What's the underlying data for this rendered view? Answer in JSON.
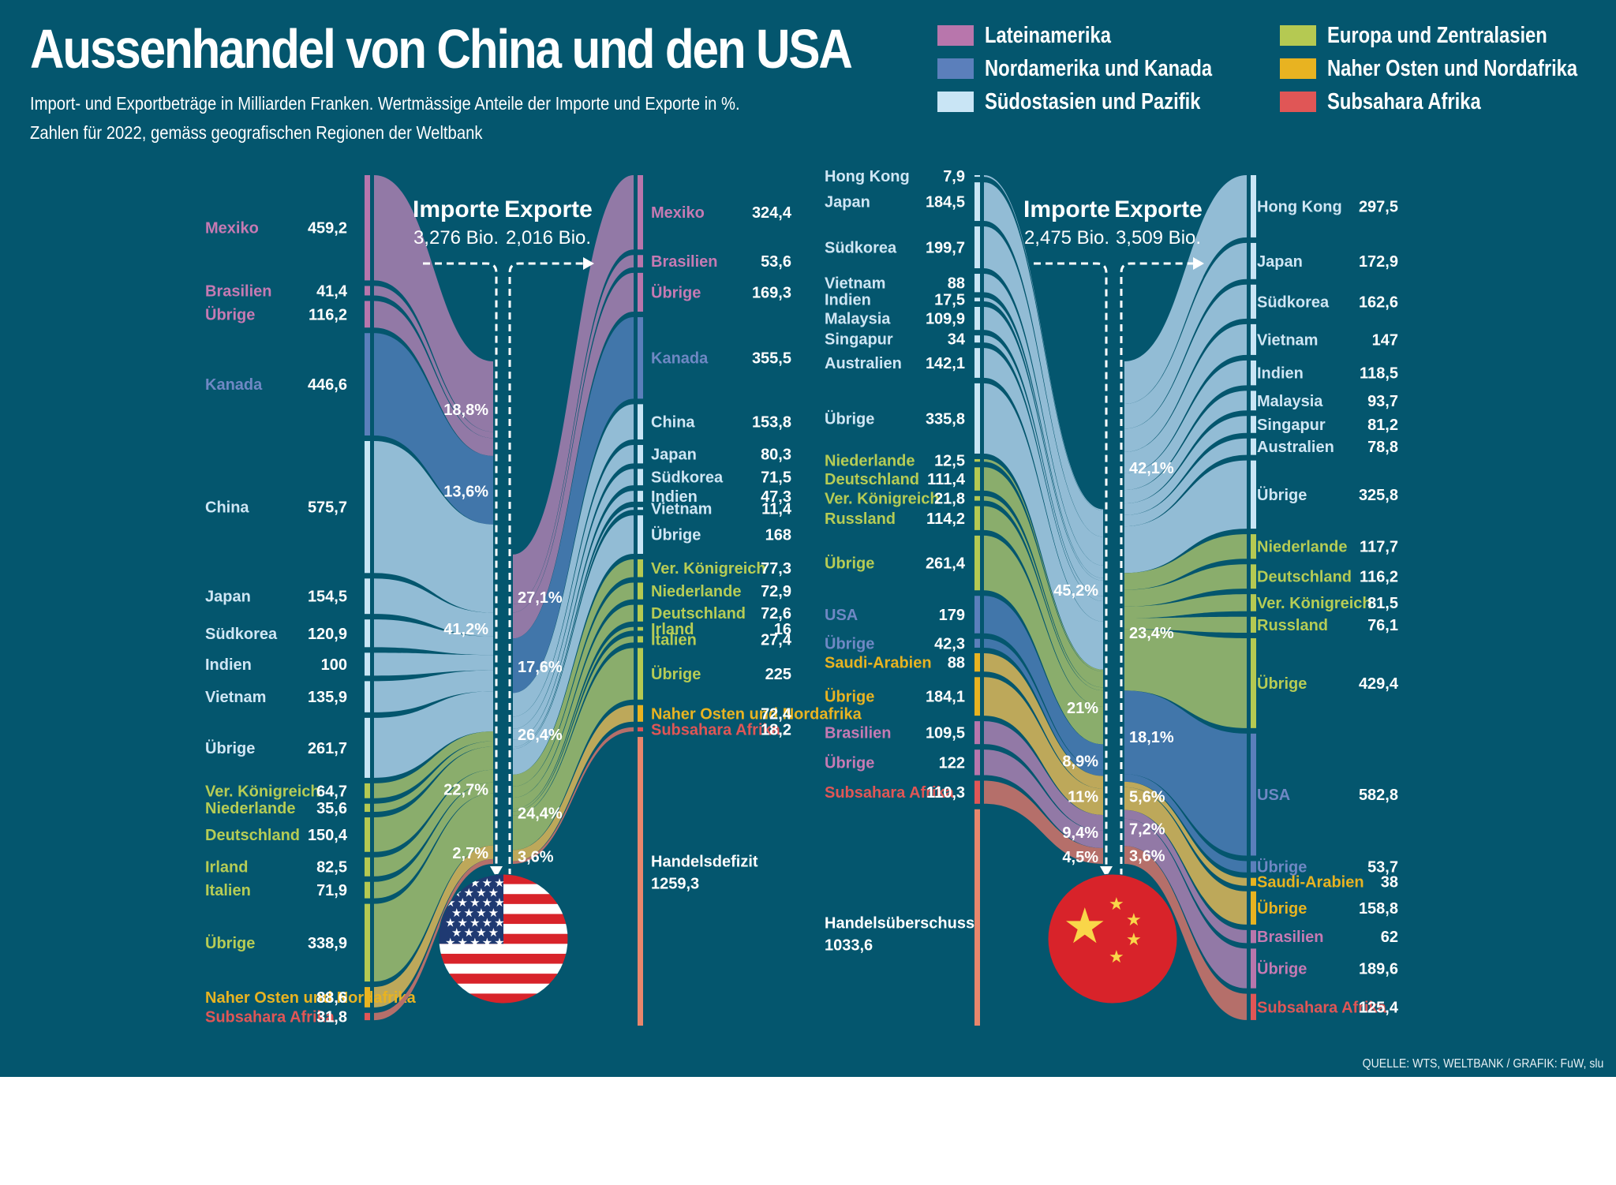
{
  "header": {
    "title": "Aussenhandel von China und den USA",
    "subtitle_1": "Import- und Exportbeträge in Milliarden Franken. Wertmässige Anteile der Importe und Exporte in %.",
    "subtitle_2": "Zahlen für 2022, gemäss geografischen Regionen der Weltbank"
  },
  "legend": [
    {
      "label": "Lateinamerika",
      "color": "#b876ac"
    },
    {
      "label": "Nordamerika und Kanada",
      "color": "#5b7fbb"
    },
    {
      "label": "Südostasien und Pazifik",
      "color": "#c9e5f5"
    },
    {
      "label": "Europa und Zentralasien",
      "color": "#b5c952"
    },
    {
      "label": "Naher Osten und Nordafrika",
      "color": "#e8b321"
    },
    {
      "label": "Subsahara Afrika",
      "color": "#e05656"
    }
  ],
  "region_colors": {
    "lat": {
      "label": "#c67ab3",
      "bar": "#b876ac",
      "flow": "#9279a6"
    },
    "na": {
      "label": "#6f88c4",
      "bar": "#5b7fbb",
      "flow": "#4176aa"
    },
    "sea": {
      "label": "#cfe6f4",
      "bar": "#c9e5f5",
      "flow": "#92bcd5"
    },
    "eu": {
      "label": "#b6cc55",
      "bar": "#b5c952",
      "flow": "#8aad6c"
    },
    "mena": {
      "label": "#e8b321",
      "bar": "#e8b321",
      "flow": "#bda85a"
    },
    "ssa": {
      "label": "#e05656",
      "bar": "#e05656",
      "flow": "#b56f6a"
    },
    "balance": {
      "bar": "#e8866c"
    }
  },
  "credit": "QUELLE: WTS, WELTBANK / GRAFIK: FuW, slu",
  "chart_data": [
    {
      "type": "sankey",
      "country": "USA",
      "flag": "usa-flag",
      "imports_label": "Importe",
      "imports_total": "3,276 Bio.",
      "exports_label": "Exporte",
      "exports_total": "2,016 Bio.",
      "imports": [
        {
          "name": "Mexiko",
          "value": 459.2,
          "value_text": "459,2",
          "region": "lat"
        },
        {
          "name": "Brasilien",
          "value": 41.4,
          "value_text": "41,4",
          "region": "lat"
        },
        {
          "name": "Übrige",
          "value": 116.2,
          "value_text": "116,2",
          "region": "lat"
        },
        {
          "name": "Kanada",
          "value": 446.6,
          "value_text": "446,6",
          "region": "na"
        },
        {
          "name": "China",
          "value": 575.7,
          "value_text": "575,7",
          "region": "sea"
        },
        {
          "name": "Japan",
          "value": 154.5,
          "value_text": "154,5",
          "region": "sea"
        },
        {
          "name": "Südkorea",
          "value": 120.9,
          "value_text": "120,9",
          "region": "sea"
        },
        {
          "name": "Indien",
          "value": 100,
          "value_text": "100",
          "region": "sea"
        },
        {
          "name": "Vietnam",
          "value": 135.9,
          "value_text": "135,9",
          "region": "sea"
        },
        {
          "name": "Übrige",
          "value": 261.7,
          "value_text": "261,7",
          "region": "sea"
        },
        {
          "name": "Ver. Königreich",
          "value": 64.7,
          "value_text": "64,7",
          "region": "eu"
        },
        {
          "name": "Niederlande",
          "value": 35.6,
          "value_text": "35,6",
          "region": "eu"
        },
        {
          "name": "Deutschland",
          "value": 150.4,
          "value_text": "150,4",
          "region": "eu"
        },
        {
          "name": "Irland",
          "value": 82.5,
          "value_text": "82,5",
          "region": "eu"
        },
        {
          "name": "Italien",
          "value": 71.9,
          "value_text": "71,9",
          "region": "eu"
        },
        {
          "name": "Übrige",
          "value": 338.9,
          "value_text": "338,9",
          "region": "eu"
        },
        {
          "name": "Naher Osten und Nordafrika",
          "value": 88.6,
          "value_text": "88,6",
          "region": "mena"
        },
        {
          "name": "Subsahara Afrika",
          "value": 31.8,
          "value_text": "31,8",
          "region": "ssa"
        }
      ],
      "import_shares": [
        {
          "region": "lat",
          "text": "18,8%"
        },
        {
          "region": "na",
          "text": "13,6%"
        },
        {
          "region": "sea",
          "text": "41,2%"
        },
        {
          "region": "eu",
          "text": "22,7%"
        },
        {
          "region": "mena",
          "text": "2,7%"
        },
        {
          "region": "ssa",
          "text": ""
        }
      ],
      "exports": [
        {
          "name": "Mexiko",
          "value": 324.4,
          "value_text": "324,4",
          "region": "lat"
        },
        {
          "name": "Brasilien",
          "value": 53.6,
          "value_text": "53,6",
          "region": "lat"
        },
        {
          "name": "Übrige",
          "value": 169.3,
          "value_text": "169,3",
          "region": "lat"
        },
        {
          "name": "Kanada",
          "value": 355.5,
          "value_text": "355,5",
          "region": "na"
        },
        {
          "name": "China",
          "value": 153.8,
          "value_text": "153,8",
          "region": "sea"
        },
        {
          "name": "Japan",
          "value": 80.3,
          "value_text": "80,3",
          "region": "sea"
        },
        {
          "name": "Südkorea",
          "value": 71.5,
          "value_text": "71,5",
          "region": "sea"
        },
        {
          "name": "Indien",
          "value": 47.3,
          "value_text": "47,3",
          "region": "sea"
        },
        {
          "name": "Vietnam",
          "value": 11.4,
          "value_text": "11,4",
          "region": "sea"
        },
        {
          "name": "Übrige",
          "value": 168,
          "value_text": "168",
          "region": "sea"
        },
        {
          "name": "Ver. Königreich",
          "value": 77.3,
          "value_text": "77,3",
          "region": "eu"
        },
        {
          "name": "Niederlande",
          "value": 72.9,
          "value_text": "72,9",
          "region": "eu"
        },
        {
          "name": "Deutschland",
          "value": 72.6,
          "value_text": "72,6",
          "region": "eu"
        },
        {
          "name": "Irland",
          "value": 16,
          "value_text": "16",
          "region": "eu"
        },
        {
          "name": "Italien",
          "value": 27.4,
          "value_text": "27,4",
          "region": "eu"
        },
        {
          "name": "Übrige",
          "value": 225,
          "value_text": "225",
          "region": "eu"
        },
        {
          "name": "Naher Osten und Nordafrika",
          "value": 72.4,
          "value_text": "72,4",
          "region": "mena"
        },
        {
          "name": "Subsahara Afrika",
          "value": 18.2,
          "value_text": "18,2",
          "region": "ssa"
        }
      ],
      "export_shares": [
        {
          "region": "lat",
          "text": "27,1%"
        },
        {
          "region": "na",
          "text": "17,6%"
        },
        {
          "region": "sea",
          "text": "26,4%"
        },
        {
          "region": "eu",
          "text": "24,4%"
        },
        {
          "region": "mena",
          "text": "3,6%"
        },
        {
          "region": "ssa",
          "text": ""
        }
      ],
      "balance": {
        "label": "Handelsdefizit",
        "value": 1259.3,
        "value_text": "1259,3",
        "side": "exports"
      }
    },
    {
      "type": "sankey",
      "country": "China",
      "flag": "china-flag",
      "imports_label": "Importe",
      "imports_total": "2,475 Bio.",
      "exports_label": "Exporte",
      "exports_total": "3,509 Bio.",
      "imports": [
        {
          "name": "Hong Kong",
          "value": 7.9,
          "value_text": "7,9",
          "region": "sea"
        },
        {
          "name": "Japan",
          "value": 184.5,
          "value_text": "184,5",
          "region": "sea"
        },
        {
          "name": "Südkorea",
          "value": 199.7,
          "value_text": "199,7",
          "region": "sea"
        },
        {
          "name": "Vietnam",
          "value": 88,
          "value_text": "88",
          "region": "sea"
        },
        {
          "name": "Indien",
          "value": 17.5,
          "value_text": "17,5",
          "region": "sea"
        },
        {
          "name": "Malaysia",
          "value": 109.9,
          "value_text": "109,9",
          "region": "sea"
        },
        {
          "name": "Singapur",
          "value": 34,
          "value_text": "34",
          "region": "sea"
        },
        {
          "name": "Australien",
          "value": 142.1,
          "value_text": "142,1",
          "region": "sea"
        },
        {
          "name": "Übrige",
          "value": 335.8,
          "value_text": "335,8",
          "region": "sea"
        },
        {
          "name": "Niederlande",
          "value": 12.5,
          "value_text": "12,5",
          "region": "eu"
        },
        {
          "name": "Deutschland",
          "value": 111.4,
          "value_text": "111,4",
          "region": "eu"
        },
        {
          "name": "Ver. Königreich",
          "value": 21.8,
          "value_text": "21,8",
          "region": "eu"
        },
        {
          "name": "Russland",
          "value": 114.2,
          "value_text": "114,2",
          "region": "eu"
        },
        {
          "name": "Übrige",
          "value": 261.4,
          "value_text": "261,4",
          "region": "eu"
        },
        {
          "name": "USA",
          "value": 179,
          "value_text": "179",
          "region": "na"
        },
        {
          "name": "Übrige",
          "value": 42.3,
          "value_text": "42,3",
          "region": "na"
        },
        {
          "name": "Saudi-Arabien",
          "value": 88,
          "value_text": "88",
          "region": "mena"
        },
        {
          "name": "Übrige",
          "value": 184.1,
          "value_text": "184,1",
          "region": "mena"
        },
        {
          "name": "Brasilien",
          "value": 109.5,
          "value_text": "109,5",
          "region": "lat"
        },
        {
          "name": "Übrige",
          "value": 122,
          "value_text": "122",
          "region": "lat"
        },
        {
          "name": "Subsahara Afrika",
          "value": 110.3,
          "value_text": "110,3",
          "region": "ssa"
        }
      ],
      "import_shares": [
        {
          "region": "sea",
          "text": "45,2%"
        },
        {
          "region": "eu",
          "text": "21%"
        },
        {
          "region": "na",
          "text": "8,9%"
        },
        {
          "region": "mena",
          "text": "11%"
        },
        {
          "region": "lat",
          "text": "9,4%"
        },
        {
          "region": "ssa",
          "text": "4,5%"
        }
      ],
      "exports": [
        {
          "name": "Hong Kong",
          "value": 297.5,
          "value_text": "297,5",
          "region": "sea"
        },
        {
          "name": "Japan",
          "value": 172.9,
          "value_text": "172,9",
          "region": "sea"
        },
        {
          "name": "Südkorea",
          "value": 162.6,
          "value_text": "162,6",
          "region": "sea"
        },
        {
          "name": "Vietnam",
          "value": 147,
          "value_text": "147",
          "region": "sea"
        },
        {
          "name": "Indien",
          "value": 118.5,
          "value_text": "118,5",
          "region": "sea"
        },
        {
          "name": "Malaysia",
          "value": 93.7,
          "value_text": "93,7",
          "region": "sea"
        },
        {
          "name": "Singapur",
          "value": 81.2,
          "value_text": "81,2",
          "region": "sea"
        },
        {
          "name": "Australien",
          "value": 78.8,
          "value_text": "78,8",
          "region": "sea"
        },
        {
          "name": "Übrige",
          "value": 325.8,
          "value_text": "325,8",
          "region": "sea"
        },
        {
          "name": "Niederlande",
          "value": 117.7,
          "value_text": "117,7",
          "region": "eu"
        },
        {
          "name": "Deutschland",
          "value": 116.2,
          "value_text": "116,2",
          "region": "eu"
        },
        {
          "name": "Ver. Königreich",
          "value": 81.5,
          "value_text": "81,5",
          "region": "eu"
        },
        {
          "name": "Russland",
          "value": 76.1,
          "value_text": "76,1",
          "region": "eu"
        },
        {
          "name": "Übrige",
          "value": 429.4,
          "value_text": "429,4",
          "region": "eu"
        },
        {
          "name": "USA",
          "value": 582.8,
          "value_text": "582,8",
          "region": "na"
        },
        {
          "name": "Übrige",
          "value": 53.7,
          "value_text": "53,7",
          "region": "na"
        },
        {
          "name": "Saudi-Arabien",
          "value": 38,
          "value_text": "38",
          "region": "mena"
        },
        {
          "name": "Übrige",
          "value": 158.8,
          "value_text": "158,8",
          "region": "mena"
        },
        {
          "name": "Brasilien",
          "value": 62,
          "value_text": "62",
          "region": "lat"
        },
        {
          "name": "Übrige",
          "value": 189.6,
          "value_text": "189,6",
          "region": "lat"
        },
        {
          "name": "Subsahara Afrika",
          "value": 125.4,
          "value_text": "125,4",
          "region": "ssa"
        }
      ],
      "export_shares": [
        {
          "region": "sea",
          "text": "42,1%"
        },
        {
          "region": "eu",
          "text": "23,4%"
        },
        {
          "region": "na",
          "text": "18,1%"
        },
        {
          "region": "mena",
          "text": "5,6%"
        },
        {
          "region": "lat",
          "text": "7,2%"
        },
        {
          "region": "ssa",
          "text": "3,6%"
        }
      ],
      "balance": {
        "label": "Handelsüberschuss",
        "value": 1033.6,
        "value_text": "1033,6",
        "side": "imports"
      }
    }
  ]
}
